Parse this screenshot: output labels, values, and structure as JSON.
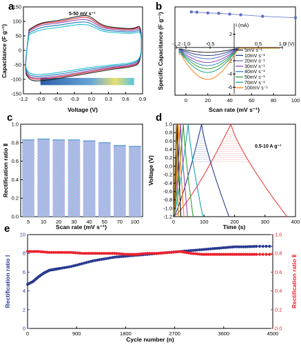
{
  "chart_data": [
    {
      "panel": "a",
      "type": "line",
      "annotation": "5-50 mV s⁻¹",
      "xlabel": "Voltage (V)",
      "ylabel": "Capacitance (F g⁻¹)",
      "xlim": [
        -1.2,
        0.9
      ],
      "ylim": [
        -150,
        150
      ],
      "xticks": [
        "-1.2",
        "-0.9",
        "-0.6",
        "-0.3",
        "0.0",
        "0.3",
        "0.6",
        "0.9"
      ],
      "yticks": [
        "-150",
        "-100",
        "-50",
        "0",
        "50",
        "100",
        "150"
      ],
      "series": [
        {
          "color": "#d62728",
          "upper": [
            [
              -1.1,
              70
            ],
            [
              -0.9,
              93
            ],
            [
              -0.6,
              98
            ],
            [
              -0.3,
              110
            ],
            [
              -0.1,
              116
            ],
            [
              0.0,
              108
            ],
            [
              0.2,
              80
            ],
            [
              0.5,
              74
            ],
            [
              0.75,
              72
            ],
            [
              0.88,
              85
            ]
          ],
          "lower": [
            [
              0.88,
              -40
            ],
            [
              0.7,
              -55
            ],
            [
              0.4,
              -60
            ],
            [
              0.1,
              -70
            ],
            [
              -0.2,
              -80
            ],
            [
              -0.5,
              -90
            ],
            [
              -0.8,
              -98
            ],
            [
              -1.0,
              -100
            ],
            [
              -1.1,
              -95
            ],
            [
              -1.18,
              -70
            ],
            [
              -1.1,
              70
            ]
          ]
        },
        {
          "color": "#222222",
          "upper": [
            [
              -1.1,
              72
            ],
            [
              -0.9,
              96
            ],
            [
              -0.6,
              102
            ],
            [
              -0.3,
              115
            ],
            [
              -0.1,
              122
            ],
            [
              0.0,
              114
            ],
            [
              0.2,
              84
            ],
            [
              0.5,
              77
            ],
            [
              0.75,
              74
            ],
            [
              0.88,
              90
            ]
          ],
          "lower": [
            [
              0.88,
              -44
            ],
            [
              0.7,
              -58
            ],
            [
              0.4,
              -64
            ],
            [
              0.1,
              -74
            ],
            [
              -0.2,
              -84
            ],
            [
              -0.5,
              -94
            ],
            [
              -0.8,
              -104
            ],
            [
              -1.0,
              -106
            ],
            [
              -1.1,
              -100
            ],
            [
              -1.18,
              -74
            ],
            [
              -1.1,
              72
            ]
          ]
        },
        {
          "color": "#8e44ad",
          "upper": [
            [
              -1.1,
              66
            ],
            [
              -0.9,
              88
            ],
            [
              -0.6,
              93
            ],
            [
              -0.3,
              104
            ],
            [
              -0.1,
              108
            ],
            [
              0.0,
              100
            ],
            [
              0.2,
              76
            ],
            [
              0.5,
              70
            ],
            [
              0.75,
              68
            ],
            [
              0.88,
              80
            ]
          ],
          "lower": [
            [
              0.88,
              -36
            ],
            [
              0.7,
              -52
            ],
            [
              0.4,
              -57
            ],
            [
              0.1,
              -66
            ],
            [
              -0.2,
              -76
            ],
            [
              -0.5,
              -86
            ],
            [
              -0.8,
              -94
            ],
            [
              -1.0,
              -96
            ],
            [
              -1.1,
              -91
            ],
            [
              -1.18,
              -66
            ],
            [
              -1.1,
              66
            ]
          ]
        },
        {
          "color": "#1f77b4",
          "upper": [
            [
              -1.1,
              60
            ],
            [
              -0.9,
              80
            ],
            [
              -0.6,
              86
            ],
            [
              -0.3,
              96
            ],
            [
              -0.1,
              99
            ],
            [
              0.0,
              92
            ],
            [
              0.2,
              70
            ],
            [
              0.5,
              65
            ],
            [
              0.75,
              63
            ],
            [
              0.88,
              74
            ]
          ],
          "lower": [
            [
              0.88,
              -32
            ],
            [
              0.7,
              -48
            ],
            [
              0.4,
              -53
            ],
            [
              0.1,
              -61
            ],
            [
              -0.2,
              -70
            ],
            [
              -0.5,
              -80
            ],
            [
              -0.8,
              -88
            ],
            [
              -1.0,
              -90
            ],
            [
              -1.1,
              -85
            ],
            [
              -1.18,
              -60
            ],
            [
              -1.1,
              60
            ]
          ]
        },
        {
          "color": "#17becf",
          "upper": [
            [
              -1.1,
              54
            ],
            [
              -0.9,
              72
            ],
            [
              -0.6,
              78
            ],
            [
              -0.3,
              88
            ],
            [
              -0.1,
              90
            ],
            [
              0.0,
              84
            ],
            [
              0.2,
              64
            ],
            [
              0.5,
              60
            ],
            [
              0.75,
              58
            ],
            [
              0.88,
              68
            ]
          ],
          "lower": [
            [
              0.88,
              -28
            ],
            [
              0.7,
              -44
            ],
            [
              0.4,
              -49
            ],
            [
              0.1,
              -56
            ],
            [
              -0.2,
              -64
            ],
            [
              -0.5,
              -74
            ],
            [
              -0.8,
              -82
            ],
            [
              -1.0,
              -84
            ],
            [
              -1.1,
              -79
            ],
            [
              -1.18,
              -54
            ],
            [
              -1.1,
              54
            ]
          ]
        }
      ]
    },
    {
      "panel": "b",
      "type": "line",
      "xlabel": "Scan rate (mV s⁻¹)",
      "ylabel": "Specific Capacitance (F g⁻¹)",
      "xlim": [
        -10,
        100
      ],
      "xticks": [
        "0",
        "20",
        "40",
        "60",
        "80",
        "100"
      ],
      "x": [
        5,
        10,
        20,
        30,
        40,
        50,
        70,
        100
      ],
      "values": [
        42,
        41.5,
        40.5,
        40,
        39,
        38,
        36,
        34
      ],
      "inset": {
        "xlabel": "U (V)",
        "ylabel": "I (mA)",
        "xlim": [
          -1.2,
          1.0
        ],
        "ylim": [
          -7,
          3
        ],
        "xticks": [
          "-1.2",
          "-1.0",
          "-0.5",
          "0.5",
          "1.0"
        ],
        "yticks": [
          "2",
          "-2",
          "-4",
          "-6"
        ],
        "legend": [
          "5mV s⁻¹",
          "10mV s⁻¹",
          "20mV s⁻¹",
          "30mV s⁻¹",
          "40mV s⁻¹",
          "50mV s⁻¹",
          "70mV s⁻¹",
          "100mV s⁻¹"
        ],
        "colors": [
          "#222222",
          "#1f3a93",
          "#5b6cc4",
          "#8e44ad",
          "#2e86c1",
          "#2ca02c",
          "#1f9e89",
          "#ff7f0e"
        ],
        "minima": [
          -0.8,
          -1.4,
          -2.0,
          -2.7,
          -3.3,
          -3.9,
          -4.6,
          -5.9
        ]
      }
    },
    {
      "panel": "c",
      "type": "bar",
      "xlabel": "Scan rate (mV s⁻¹)",
      "ylabel": "Rectification ratio Ⅱ",
      "categories": [
        "5",
        "10",
        "20",
        "30",
        "40",
        "50",
        "70",
        "100"
      ],
      "values": [
        0.83,
        0.84,
        0.83,
        0.83,
        0.82,
        0.8,
        0.77,
        0.76
      ],
      "ylim": [
        0,
        1.0
      ],
      "yticks": [
        "0.0",
        "0.2",
        "0.4",
        "0.6",
        "0.8",
        "1.0"
      ]
    },
    {
      "panel": "d",
      "type": "line",
      "annotation": "0.5-10 A g⁻¹",
      "xlabel": "Time (s)",
      "ylabel": "Voltage (V)",
      "xlim": [
        0,
        400
      ],
      "ylim": [
        -1.2,
        1.0
      ],
      "xticks": [
        "0",
        "100",
        "200",
        "300",
        "400"
      ],
      "yticks": [
        "-1.2",
        "-1.0",
        "-0.8",
        "-0.6",
        "-0.4",
        "-0.2",
        "0.0",
        "0.2",
        "0.4",
        "0.6",
        "0.8",
        "1.0"
      ],
      "series": [
        {
          "color": "#e8403f",
          "charge_end": 188,
          "discharge_end": 372
        },
        {
          "color": "#2a3a8f",
          "charge_end": 92,
          "discharge_end": 182
        },
        {
          "color": "#17a2b8",
          "charge_end": 48,
          "discharge_end": 96
        },
        {
          "color": "#2ca02c",
          "charge_end": 32,
          "discharge_end": 64
        },
        {
          "color": "#8e44ad",
          "charge_end": 23,
          "discharge_end": 46
        },
        {
          "color": "#ff7f0e",
          "charge_end": 17,
          "discharge_end": 34
        },
        {
          "color": "#111111",
          "charge_end": 12,
          "discharge_end": 24
        },
        {
          "color": "#b8860b",
          "charge_end": 8,
          "discharge_end": 16
        }
      ]
    },
    {
      "panel": "e",
      "type": "scatter",
      "xlabel": "Cycle number (n)",
      "ylabel_left": "Rectification ratio Ⅰ",
      "ylabel_right": "Rectification ratio Ⅱ",
      "xlim": [
        0,
        4500
      ],
      "ylim_left": [
        0,
        10
      ],
      "ylim_right": [
        0,
        1.0
      ],
      "xticks": [
        "0",
        "900",
        "1800",
        "2700",
        "3600",
        "4500"
      ],
      "yticks_left": [
        "0",
        "2",
        "4",
        "6",
        "8",
        "10"
      ],
      "yticks_right": [
        "0.0",
        "0.2",
        "0.4",
        "0.6",
        "0.8",
        "1.0"
      ],
      "series": [
        {
          "axis": "left",
          "color": "#2a3a8f",
          "x": [
            0,
            100,
            200,
            300,
            400,
            500,
            600,
            800,
            1000,
            1200,
            1400,
            1600,
            1800,
            2000,
            2200,
            2400,
            2600,
            2800,
            3000,
            3200,
            3400,
            3600,
            3800,
            4000,
            4200,
            4500
          ],
          "values": [
            4.7,
            5.0,
            5.5,
            5.9,
            6.2,
            6.3,
            6.4,
            6.6,
            6.9,
            7.2,
            7.4,
            7.6,
            7.7,
            7.8,
            7.9,
            8.0,
            8.1,
            8.2,
            8.3,
            8.4,
            8.5,
            8.6,
            8.7,
            8.7,
            8.75,
            8.75
          ]
        },
        {
          "axis": "right",
          "color": "#e8222e",
          "x": [
            0,
            200,
            400,
            600,
            800,
            1000,
            1200,
            1400,
            1600,
            1800,
            2000,
            2200,
            2400,
            2600,
            2800,
            3000,
            3200,
            3400,
            3600,
            3800,
            4000,
            4200,
            4500
          ],
          "values": [
            0.82,
            0.82,
            0.81,
            0.81,
            0.81,
            0.8,
            0.8,
            0.8,
            0.8,
            0.79,
            0.79,
            0.8,
            0.8,
            0.81,
            0.82,
            0.8,
            0.79,
            0.79,
            0.79,
            0.79,
            0.79,
            0.79,
            0.79
          ]
        }
      ]
    }
  ]
}
